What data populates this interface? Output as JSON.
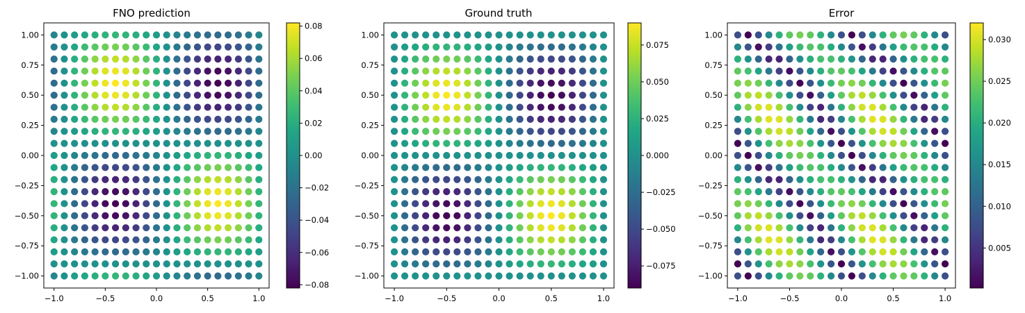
{
  "chart_data": [
    {
      "type": "scatter",
      "title": "FNO prediction",
      "x": {
        "min": -1.0,
        "max": 1.0,
        "n": 21
      },
      "y": {
        "min": -1.0,
        "max": 1.0,
        "n": 21
      },
      "xlim": [
        -1.1,
        1.1
      ],
      "ylim": [
        -1.1,
        1.1
      ],
      "xticks": [
        -1.0,
        -0.5,
        0.0,
        0.5,
        1.0
      ],
      "xtick_labels": [
        "−1.0",
        "−0.5",
        "0.0",
        "0.5",
        "1.0"
      ],
      "yticks": [
        -1.0,
        -0.75,
        -0.5,
        -0.25,
        0.0,
        0.25,
        0.5,
        0.75,
        1.0
      ],
      "ytick_labels": [
        "−1.00",
        "−0.75",
        "−0.50",
        "−0.25",
        "0.00",
        "0.25",
        "0.50",
        "0.75",
        "1.00"
      ],
      "value_formula": "A*sin(pi*(x-0.1))*sin(pi*(y-0.1))",
      "value_field": {
        "kind": "sin_product",
        "amplitude": -0.082,
        "x_shift": 0.1,
        "y_shift": 0.1
      },
      "colorbar": {
        "range": [
          -0.082,
          0.082
        ],
        "ticks": [
          -0.08,
          -0.06,
          -0.04,
          -0.02,
          0.0,
          0.02,
          0.04,
          0.06,
          0.08
        ],
        "tick_labels": [
          "−0.08",
          "−0.06",
          "−0.04",
          "−0.02",
          "0.00",
          "0.02",
          "0.04",
          "0.06",
          "0.08"
        ]
      },
      "colormap": "viridis"
    },
    {
      "type": "scatter",
      "title": "Ground truth",
      "x": {
        "min": -1.0,
        "max": 1.0,
        "n": 21
      },
      "y": {
        "min": -1.0,
        "max": 1.0,
        "n": 21
      },
      "xlim": [
        -1.1,
        1.1
      ],
      "ylim": [
        -1.1,
        1.1
      ],
      "xticks": [
        -1.0,
        -0.5,
        0.0,
        0.5,
        1.0
      ],
      "xtick_labels": [
        "−1.0",
        "−0.5",
        "0.0",
        "0.5",
        "1.0"
      ],
      "yticks": [
        -1.0,
        -0.75,
        -0.5,
        -0.25,
        0.0,
        0.25,
        0.5,
        0.75,
        1.0
      ],
      "ytick_labels": [
        "−1.00",
        "−0.75",
        "−0.50",
        "−0.25",
        "0.00",
        "0.25",
        "0.50",
        "0.75",
        "1.00"
      ],
      "value_formula": "A*sin(pi*x)*sin(pi*y)",
      "value_field": {
        "kind": "sin_product",
        "amplitude": -0.09,
        "x_shift": 0.0,
        "y_shift": 0.0
      },
      "colorbar": {
        "range": [
          -0.09,
          0.09
        ],
        "ticks": [
          -0.075,
          -0.05,
          -0.025,
          0.0,
          0.025,
          0.05,
          0.075
        ],
        "tick_labels": [
          "−0.075",
          "−0.050",
          "−0.025",
          "0.000",
          "0.025",
          "0.050",
          "0.075"
        ]
      },
      "colormap": "viridis"
    },
    {
      "type": "scatter",
      "title": "Error",
      "x": {
        "min": -1.0,
        "max": 1.0,
        "n": 21
      },
      "y": {
        "min": -1.0,
        "max": 1.0,
        "n": 21
      },
      "xlim": [
        -1.1,
        1.1
      ],
      "ylim": [
        -1.1,
        1.1
      ],
      "xticks": [
        -1.0,
        -0.5,
        0.0,
        0.5,
        1.0
      ],
      "xtick_labels": [
        "−1.0",
        "−0.5",
        "0.0",
        "0.5",
        "1.0"
      ],
      "yticks": [
        -1.0,
        -0.75,
        -0.5,
        -0.25,
        0.0,
        0.25,
        0.5,
        0.75,
        1.0
      ],
      "ytick_labels": [
        "−1.00",
        "−0.75",
        "−0.50",
        "−0.25",
        "0.00",
        "0.25",
        "0.50",
        "0.75",
        "1.00"
      ],
      "value_formula": "|prediction - ground truth|",
      "value_field": {
        "kind": "abs_difference",
        "of": [
          0,
          1
        ]
      },
      "colorbar": {
        "range": [
          0.0002,
          0.032
        ],
        "ticks": [
          0.005,
          0.01,
          0.015,
          0.02,
          0.025,
          0.03
        ],
        "tick_labels": [
          "0.005",
          "0.010",
          "0.015",
          "0.020",
          "0.025",
          "0.030"
        ]
      },
      "colormap": "viridis"
    }
  ]
}
